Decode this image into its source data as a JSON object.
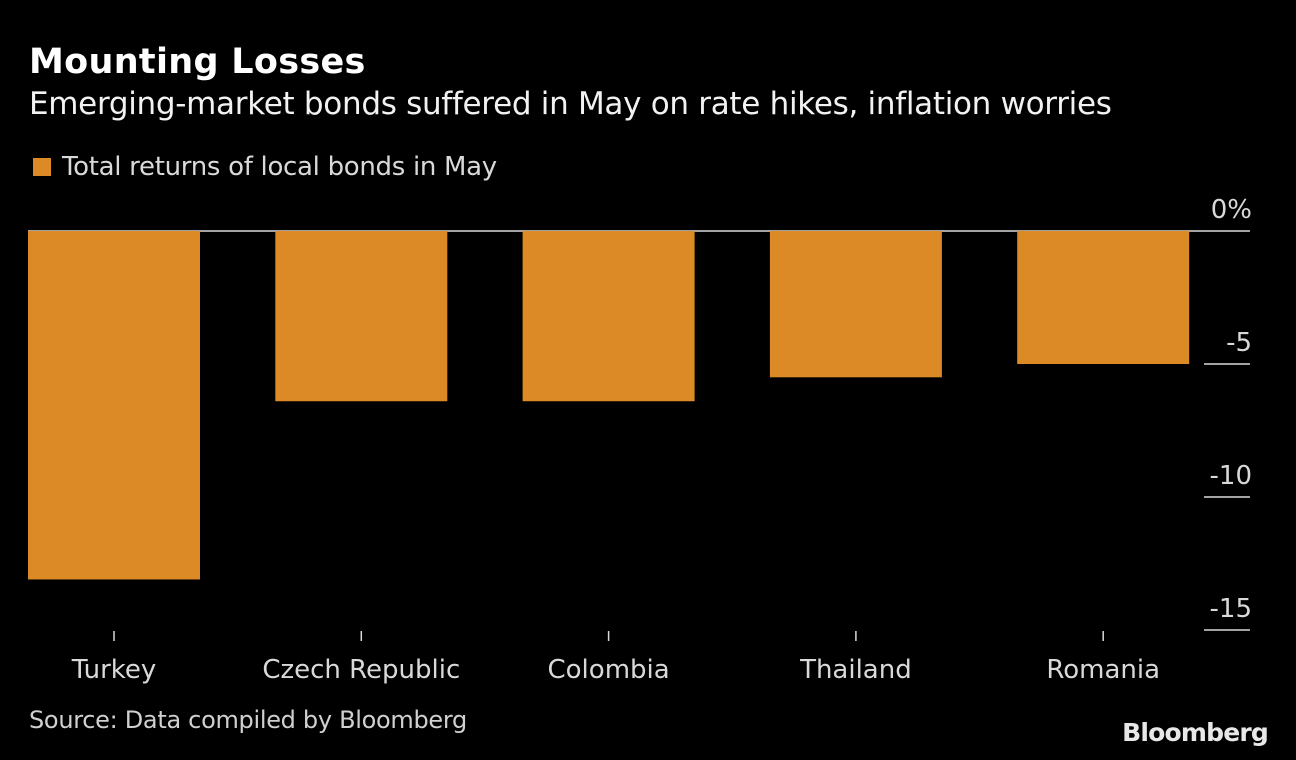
{
  "chart_data": {
    "type": "bar",
    "title": "Mounting Losses",
    "subtitle": "Emerging-market bonds suffered in May on rate hikes, inflation worries",
    "legend": [
      {
        "name": "Total returns of local bonds in May",
        "color": "#dc8a26"
      }
    ],
    "legend_position": "top-left",
    "categories": [
      "Turkey",
      "Czech Republic",
      "Colombia",
      "Thailand",
      "Romania"
    ],
    "series": [
      {
        "name": "Total returns of local bonds in May",
        "values": [
          -13.1,
          -6.4,
          -6.4,
          -5.5,
          -5.0
        ]
      }
    ],
    "xlabel": "",
    "ylabel": "",
    "ylim": [
      -15,
      0
    ],
    "yticks": [
      0,
      -5,
      -10,
      -15
    ],
    "ytick_labels": [
      "0%",
      "-5",
      "-10",
      "-15"
    ],
    "y_axis_side": "right",
    "grid": false,
    "colors": {
      "bar": "#dc8a26",
      "background": "#000000",
      "axis": "#d9d9d9"
    }
  },
  "footer": {
    "source": "Source: Data compiled by Bloomberg",
    "brand": "Bloomberg"
  }
}
